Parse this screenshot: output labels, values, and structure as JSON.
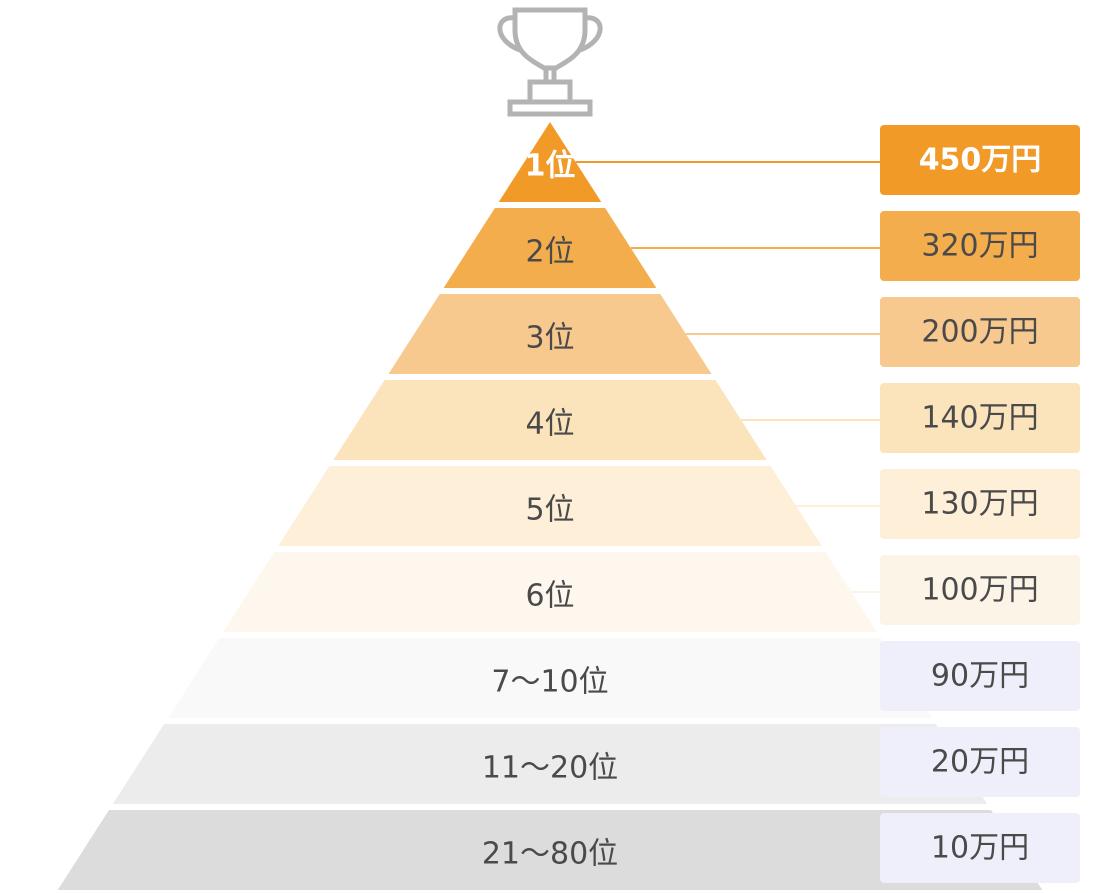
{
  "tiers": [
    {
      "rank": "1位",
      "prize": "450万円"
    },
    {
      "rank": "2位",
      "prize": "320万円"
    },
    {
      "rank": "3位",
      "prize": "200万円"
    },
    {
      "rank": "4位",
      "prize": "140万円"
    },
    {
      "rank": "5位",
      "prize": "130万円"
    },
    {
      "rank": "6位",
      "prize": "100万円"
    },
    {
      "rank": "7〜10位",
      "prize": "90万円"
    },
    {
      "rank": "11〜20位",
      "prize": "20万円"
    },
    {
      "rank": "21〜80位",
      "prize": "10万円"
    }
  ]
}
